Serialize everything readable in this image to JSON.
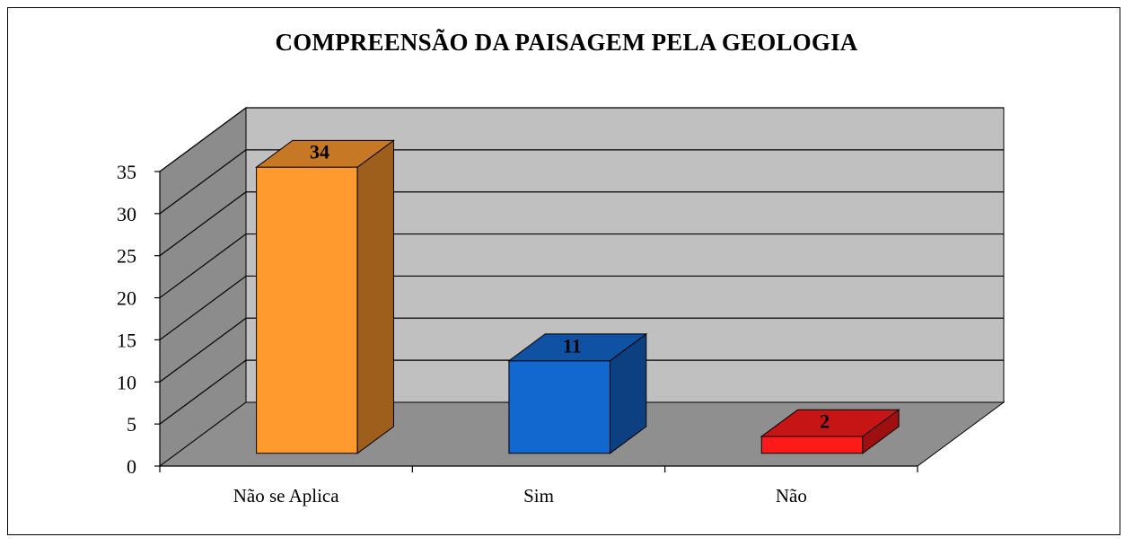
{
  "chart_data": {
    "type": "bar",
    "title": "COMPREENSÃO DA PAISAGEM PELA GEOLOGIA",
    "categories": [
      "Não se Aplica",
      "Sim",
      "Não"
    ],
    "values": [
      34,
      11,
      2
    ],
    "data_labels": [
      "34",
      "11",
      "2"
    ],
    "ylim": [
      0,
      35
    ],
    "yticks": [
      "0",
      "5",
      "10",
      "15",
      "20",
      "25",
      "30",
      "35"
    ],
    "grid": true,
    "legend": "none",
    "style": "3d-column",
    "colors": [
      "#FF9A2E",
      "#1368D0",
      "#FF1A1A"
    ]
  }
}
